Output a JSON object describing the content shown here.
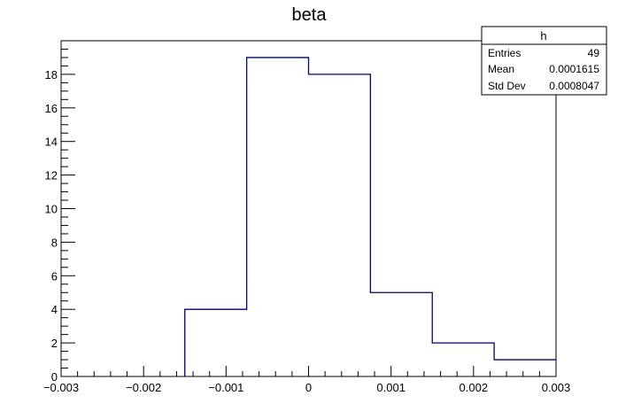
{
  "chart_data": {
    "type": "histogram",
    "title": "beta",
    "xlabel": "",
    "ylabel": "",
    "xlim": [
      -0.003,
      0.003
    ],
    "ylim": [
      0,
      20
    ],
    "bin_edges": [
      -0.003,
      -0.00225,
      -0.0015,
      -0.00075,
      0,
      0.00075,
      0.0015,
      0.00225,
      0.003
    ],
    "counts": [
      0,
      0,
      4,
      19,
      18,
      5,
      2,
      1
    ],
    "line_color": "#000080",
    "x_ticks": [
      {
        "value": -0.003,
        "label": "−0.003"
      },
      {
        "value": -0.002,
        "label": "−0.002"
      },
      {
        "value": -0.001,
        "label": "−0.001"
      },
      {
        "value": 0,
        "label": "0"
      },
      {
        "value": 0.001,
        "label": "0.001"
      },
      {
        "value": 0.002,
        "label": "0.002"
      },
      {
        "value": 0.003,
        "label": "0.003"
      }
    ],
    "y_ticks": [
      {
        "value": 0,
        "label": "0"
      },
      {
        "value": 2,
        "label": "2"
      },
      {
        "value": 4,
        "label": "4"
      },
      {
        "value": 6,
        "label": "6"
      },
      {
        "value": 8,
        "label": "8"
      },
      {
        "value": 10,
        "label": "10"
      },
      {
        "value": 12,
        "label": "12"
      },
      {
        "value": 14,
        "label": "14"
      },
      {
        "value": 16,
        "label": "16"
      },
      {
        "value": 18,
        "label": "18"
      }
    ],
    "stats": {
      "name": "h",
      "entries_label": "Entries",
      "entries_value": "49",
      "mean_label": "Mean",
      "mean_value": "0.0001615",
      "stddev_label": "Std Dev",
      "stddev_value": "0.0008047"
    }
  }
}
